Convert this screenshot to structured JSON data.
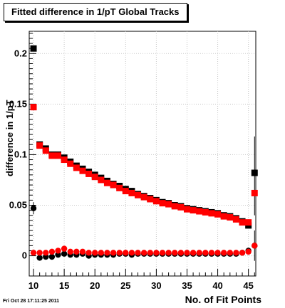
{
  "chart_data": {
    "type": "scatter",
    "title": "Fitted difference in 1/pT  Global Tracks",
    "xlabel": "No. of Fit Points",
    "ylabel": "difference in 1/pT",
    "xlim": [
      9.3,
      46.2
    ],
    "ylim": [
      -0.02,
      0.222
    ],
    "x_ticks": [
      10,
      15,
      20,
      25,
      30,
      35,
      40,
      45
    ],
    "y_ticks": [
      0,
      0.05,
      0.1,
      0.15,
      0.2
    ],
    "y_tick_labels": [
      "0",
      "0.05",
      "0.1",
      "0.15",
      "0.2"
    ],
    "grid": true,
    "series": [
      {
        "marker": "square",
        "color": "#000000",
        "points": [
          [
            10,
            0.205
          ],
          [
            11,
            0.11
          ],
          [
            12,
            0.106
          ],
          [
            13,
            0.1
          ],
          [
            14,
            0.1
          ],
          [
            15,
            0.097
          ],
          [
            16,
            0.093
          ],
          [
            17,
            0.089
          ],
          [
            18,
            0.086
          ],
          [
            19,
            0.083
          ],
          [
            20,
            0.08
          ],
          [
            21,
            0.077
          ],
          [
            22,
            0.074
          ],
          [
            23,
            0.071
          ],
          [
            24,
            0.069
          ],
          [
            25,
            0.066
          ],
          [
            26,
            0.064
          ],
          [
            27,
            0.061
          ],
          [
            28,
            0.059
          ],
          [
            29,
            0.057
          ],
          [
            30,
            0.055
          ],
          [
            31,
            0.053
          ],
          [
            32,
            0.052
          ],
          [
            33,
            0.05
          ],
          [
            34,
            0.049
          ],
          [
            35,
            0.047
          ],
          [
            36,
            0.046
          ],
          [
            37,
            0.045
          ],
          [
            38,
            0.044
          ],
          [
            39,
            0.043
          ],
          [
            40,
            0.042
          ],
          [
            41,
            0.04
          ],
          [
            42,
            0.039
          ],
          [
            43,
            0.037
          ],
          [
            44,
            0.034
          ],
          [
            45,
            0.03
          ],
          [
            46,
            0.082
          ]
        ]
      },
      {
        "marker": "square",
        "color": "#ff0000",
        "points": [
          [
            10,
            0.147
          ],
          [
            11,
            0.109
          ],
          [
            12,
            0.104
          ],
          [
            13,
            0.099
          ],
          [
            14,
            0.099
          ],
          [
            15,
            0.095
          ],
          [
            16,
            0.091
          ],
          [
            17,
            0.087
          ],
          [
            18,
            0.084
          ],
          [
            19,
            0.081
          ],
          [
            20,
            0.078
          ],
          [
            21,
            0.075
          ],
          [
            22,
            0.072
          ],
          [
            23,
            0.07
          ],
          [
            24,
            0.067
          ],
          [
            25,
            0.064
          ],
          [
            26,
            0.062
          ],
          [
            27,
            0.06
          ],
          [
            28,
            0.058
          ],
          [
            29,
            0.056
          ],
          [
            30,
            0.054
          ],
          [
            31,
            0.052
          ],
          [
            32,
            0.051
          ],
          [
            33,
            0.049
          ],
          [
            34,
            0.048
          ],
          [
            35,
            0.046
          ],
          [
            36,
            0.045
          ],
          [
            37,
            0.044
          ],
          [
            38,
            0.043
          ],
          [
            39,
            0.042
          ],
          [
            40,
            0.041
          ],
          [
            41,
            0.039
          ],
          [
            42,
            0.038
          ],
          [
            43,
            0.036
          ],
          [
            44,
            0.033
          ],
          [
            45,
            0.033
          ],
          [
            46,
            0.062
          ]
        ]
      },
      {
        "marker": "circle",
        "color": "#000000",
        "points": [
          [
            10,
            0.047
          ],
          [
            11,
            -0.002
          ],
          [
            12,
            -0.001
          ],
          [
            13,
            -0.001
          ],
          [
            14,
            0.001
          ],
          [
            15,
            0.002
          ],
          [
            16,
            0.001
          ],
          [
            17,
            0.001
          ],
          [
            18,
            0.002
          ],
          [
            19,
            0.0
          ],
          [
            20,
            0.001
          ],
          [
            21,
            0.001
          ],
          [
            22,
            0.001
          ],
          [
            23,
            0.001
          ],
          [
            24,
            0.002
          ],
          [
            25,
            0.002
          ],
          [
            26,
            0.001
          ],
          [
            27,
            0.002
          ],
          [
            28,
            0.002
          ],
          [
            29,
            0.002
          ],
          [
            30,
            0.002
          ],
          [
            31,
            0.002
          ],
          [
            32,
            0.002
          ],
          [
            33,
            0.002
          ],
          [
            34,
            0.002
          ],
          [
            35,
            0.002
          ],
          [
            36,
            0.002
          ],
          [
            37,
            0.002
          ],
          [
            38,
            0.002
          ],
          [
            39,
            0.002
          ],
          [
            40,
            0.002
          ],
          [
            41,
            0.002
          ],
          [
            42,
            0.002
          ],
          [
            43,
            0.002
          ],
          [
            44,
            0.003
          ],
          [
            45,
            0.005
          ],
          [
            46,
            0.01
          ]
        ]
      },
      {
        "marker": "circle",
        "color": "#ff0000",
        "points": [
          [
            10,
            0.003
          ],
          [
            11,
            0.003
          ],
          [
            12,
            0.003
          ],
          [
            13,
            0.004
          ],
          [
            14,
            0.005
          ],
          [
            15,
            0.007
          ],
          [
            16,
            0.004
          ],
          [
            17,
            0.004
          ],
          [
            18,
            0.004
          ],
          [
            19,
            0.003
          ],
          [
            20,
            0.003
          ],
          [
            21,
            0.003
          ],
          [
            22,
            0.003
          ],
          [
            23,
            0.003
          ],
          [
            24,
            0.003
          ],
          [
            25,
            0.003
          ],
          [
            26,
            0.003
          ],
          [
            27,
            0.003
          ],
          [
            28,
            0.003
          ],
          [
            29,
            0.003
          ],
          [
            30,
            0.003
          ],
          [
            31,
            0.003
          ],
          [
            32,
            0.003
          ],
          [
            33,
            0.003
          ],
          [
            34,
            0.003
          ],
          [
            35,
            0.003
          ],
          [
            36,
            0.003
          ],
          [
            37,
            0.003
          ],
          [
            38,
            0.003
          ],
          [
            39,
            0.003
          ],
          [
            40,
            0.003
          ],
          [
            41,
            0.003
          ],
          [
            42,
            0.003
          ],
          [
            43,
            0.003
          ],
          [
            44,
            0.003
          ],
          [
            45,
            0.004
          ],
          [
            46,
            0.01
          ]
        ]
      }
    ],
    "error_bars": [
      {
        "x": 46,
        "y": 0.082,
        "low": 0.04,
        "high": 0.118
      },
      {
        "x": 46,
        "y": 0.01,
        "low": -0.005,
        "high": 0.025
      },
      {
        "x": 10,
        "y": 0.047,
        "low": 0.041,
        "high": 0.053
      }
    ]
  },
  "footer": {
    "timestamp": "Fri Oct 28 17:11:25 2011"
  }
}
